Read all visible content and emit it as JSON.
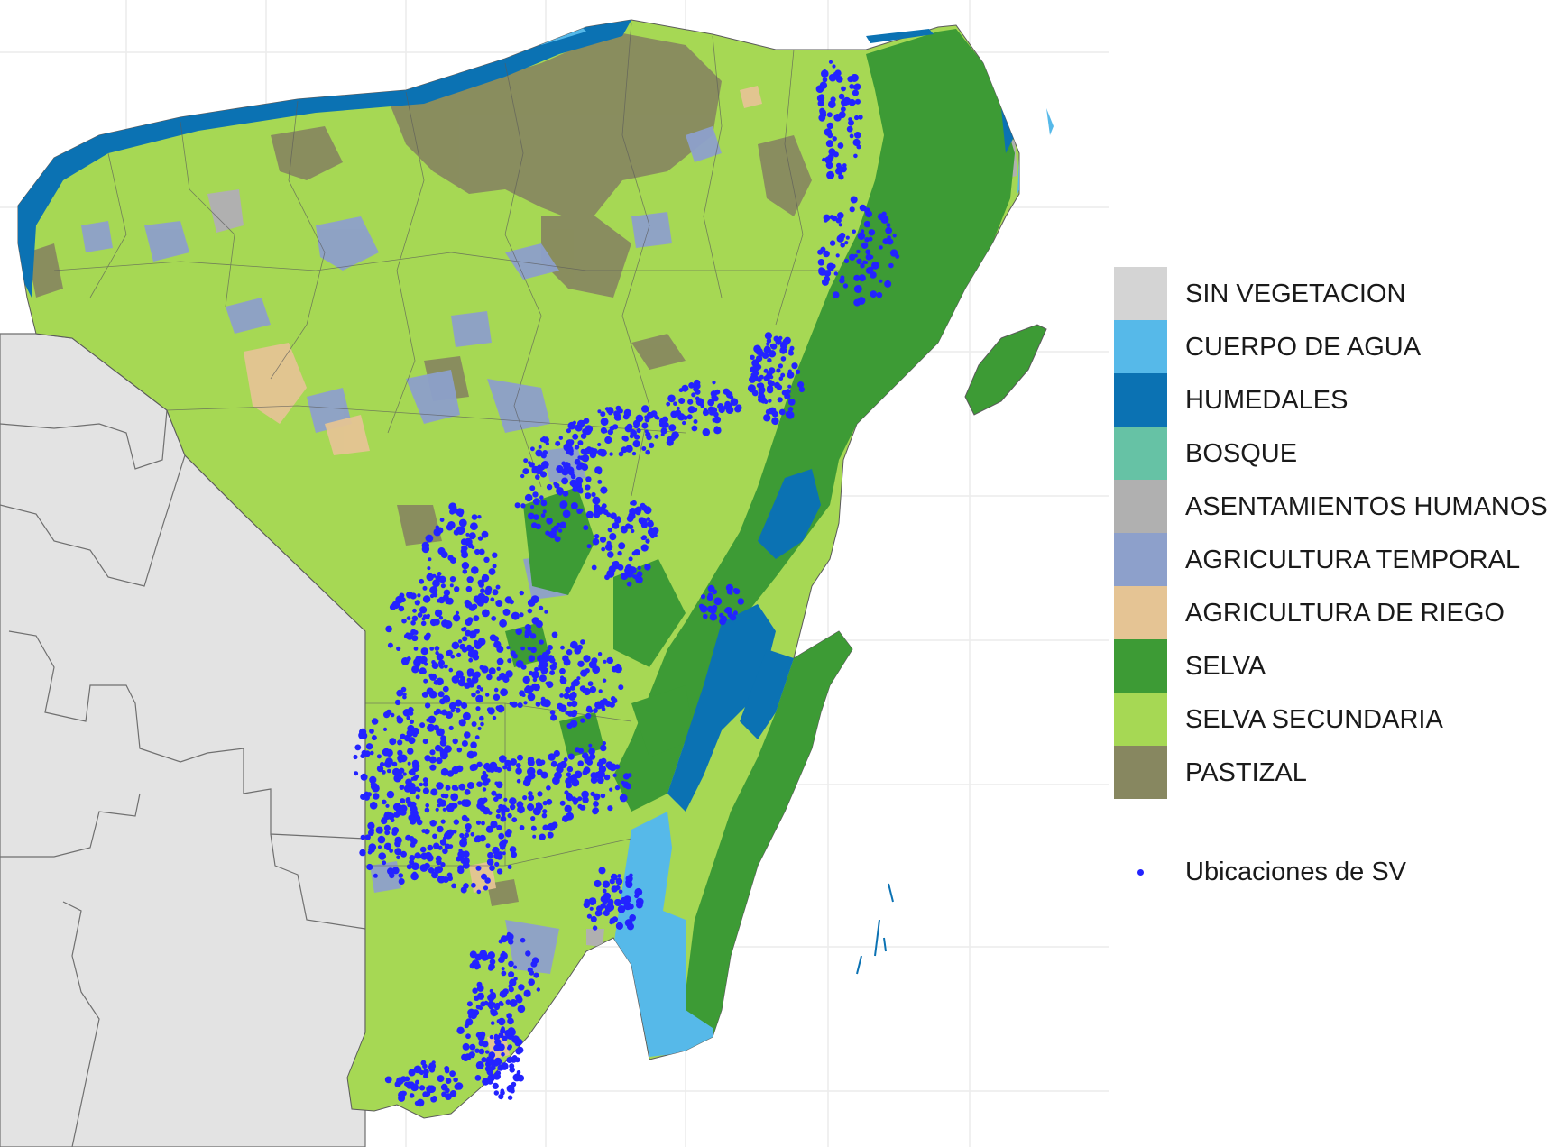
{
  "legend": {
    "classes": [
      {
        "label": "SIN VEGETACION",
        "color": "#d4d4d4"
      },
      {
        "label": "CUERPO DE AGUA",
        "color": "#56b9e9"
      },
      {
        "label": "HUMEDALES",
        "color": "#0b72b3"
      },
      {
        "label": "BOSQUE",
        "color": "#66c2a5"
      },
      {
        "label": "ASENTAMIENTOS HUMANOS",
        "color": "#b0b0b0"
      },
      {
        "label": "AGRICULTURA TEMPORAL",
        "color": "#8da0cb"
      },
      {
        "label": "AGRICULTURA DE RIEGO",
        "color": "#e5c494"
      },
      {
        "label": "SELVA",
        "color": "#3d9b35"
      },
      {
        "label": "SELVA SECUNDARIA",
        "color": "#a6d854"
      },
      {
        "label": "PASTIZAL",
        "color": "#878760"
      }
    ],
    "points": {
      "label": "Ubicaciones de SV",
      "color": "#2323ff"
    }
  },
  "colors": {
    "background": "#ffffff",
    "neighbor_land": "#e3e3e3",
    "boundary": "#6f6f6f",
    "graticule": "#ececec"
  }
}
